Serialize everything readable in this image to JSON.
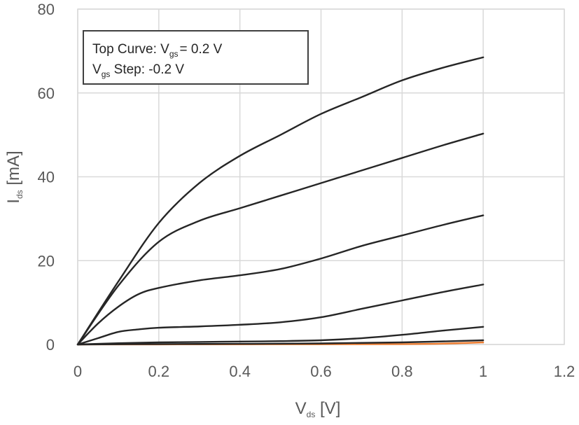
{
  "chart_data": {
    "type": "line",
    "title": "",
    "xlabel": {
      "main": "V",
      "sub": "ds",
      "unit": " [V]"
    },
    "ylabel": {
      "main": "I",
      "sub": "ds",
      "unit": " [mA]"
    },
    "xlim": [
      0,
      1.2
    ],
    "ylim": [
      0,
      80
    ],
    "xticks": [
      0,
      0.2,
      0.4,
      0.6,
      0.8,
      1,
      1.2
    ],
    "xtick_labels": [
      "0",
      "0.2",
      "0.4",
      "0.6",
      "0.8",
      "1",
      "1.2"
    ],
    "yticks": [
      0,
      20,
      40,
      60,
      80
    ],
    "ytick_labels": [
      "0",
      "20",
      "40",
      "60",
      "80"
    ],
    "grid": true,
    "annotation": {
      "line1": {
        "prefix": "Top Curve: V",
        "sub": "gs",
        "suffix": "= 0.2 V"
      },
      "line2": {
        "prefix": "V",
        "sub": "gs",
        "suffix": " Step: -0.2 V"
      }
    },
    "series": [
      {
        "color": "#262626",
        "x": [
          0,
          0.1,
          0.2,
          0.3,
          0.4,
          0.5,
          0.6,
          0.7,
          0.8,
          0.9,
          1.0
        ],
        "values": [
          0,
          15,
          29,
          38.5,
          45,
          50,
          55,
          59,
          63,
          66,
          68.5
        ]
      },
      {
        "color": "#262626",
        "x": [
          0,
          0.1,
          0.2,
          0.3,
          0.4,
          0.5,
          0.6,
          0.7,
          0.8,
          0.9,
          1.0
        ],
        "values": [
          0,
          14,
          24.5,
          29.5,
          32.5,
          35.5,
          38.5,
          41.5,
          44.5,
          47.5,
          50.3
        ]
      },
      {
        "color": "#262626",
        "x": [
          0,
          0.05,
          0.1,
          0.15,
          0.2,
          0.3,
          0.4,
          0.5,
          0.6,
          0.7,
          0.8,
          0.9,
          1.0
        ],
        "values": [
          0,
          5,
          9,
          12,
          13.5,
          15.3,
          16.5,
          18,
          20.5,
          23.5,
          26,
          28.5,
          30.8
        ]
      },
      {
        "color": "#262626",
        "x": [
          0,
          0.05,
          0.1,
          0.15,
          0.2,
          0.3,
          0.4,
          0.5,
          0.6,
          0.7,
          0.8,
          0.9,
          1.0
        ],
        "values": [
          0,
          1.5,
          3,
          3.6,
          4,
          4.3,
          4.7,
          5.3,
          6.5,
          8.5,
          10.5,
          12.5,
          14.3
        ]
      },
      {
        "color": "#262626",
        "x": [
          0,
          0.1,
          0.2,
          0.3,
          0.4,
          0.5,
          0.6,
          0.7,
          0.8,
          0.9,
          1.0
        ],
        "values": [
          0,
          0.3,
          0.5,
          0.6,
          0.7,
          0.8,
          1.0,
          1.5,
          2.3,
          3.3,
          4.2
        ]
      },
      {
        "color": "#262626",
        "x": [
          0,
          0.2,
          0.4,
          0.6,
          0.8,
          1.0
        ],
        "values": [
          0,
          0.1,
          0.15,
          0.25,
          0.5,
          1.0
        ]
      },
      {
        "color": "#ed7d31",
        "x": [
          0,
          0.2,
          0.4,
          0.6,
          0.8,
          0.9,
          1.0
        ],
        "values": [
          0,
          0.02,
          0.04,
          0.06,
          0.1,
          0.2,
          0.5
        ]
      }
    ]
  }
}
